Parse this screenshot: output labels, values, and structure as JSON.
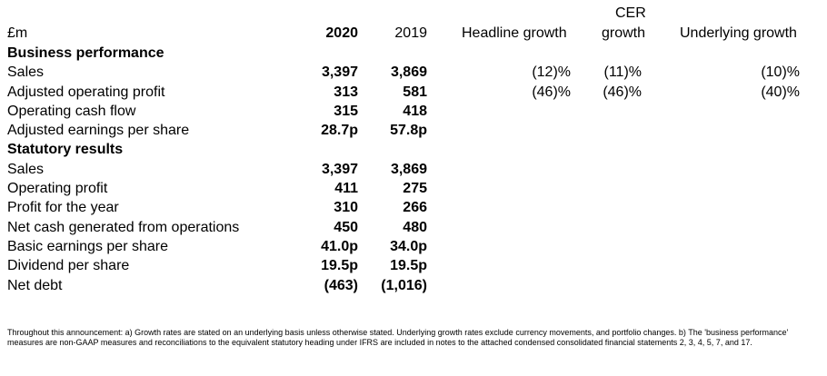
{
  "header": {
    "unit": "£m",
    "col_2020": "2020",
    "col_2019": "2019",
    "col_headline": "Headline growth",
    "col_cer_line1": "CER",
    "col_cer_line2": "growth",
    "col_underlying": "Underlying growth"
  },
  "rows": [
    {
      "label": "Business performance",
      "section": true
    },
    {
      "label": "Sales",
      "v2020": "3,397",
      "v2019": "3,869",
      "headline": "(12)%",
      "cer": "(11)%",
      "underlying": "(10)%"
    },
    {
      "label": "Adjusted operating profit",
      "v2020": "313",
      "v2019": "581",
      "headline": "(46)%",
      "cer": "(46)%",
      "underlying": "(40)%"
    },
    {
      "label": "Operating cash flow",
      "v2020": "315",
      "v2019": "418"
    },
    {
      "label": "Adjusted earnings per share",
      "v2020": "28.7p",
      "v2019": "57.8p"
    },
    {
      "label": "Statutory results",
      "section": true
    },
    {
      "label": "Sales",
      "v2020": "3,397",
      "v2019": "3,869"
    },
    {
      "label": "Operating profit",
      "v2020": "411",
      "v2019": "275"
    },
    {
      "label": "Profit for the year",
      "v2020": "310",
      "v2019": "266"
    },
    {
      "label": "Net cash generated from operations",
      "v2020": "450",
      "v2019": "480"
    },
    {
      "label": "Basic earnings per share",
      "v2020": "41.0p",
      "v2019": "34.0p"
    },
    {
      "label": "Dividend per share",
      "v2020": "19.5p",
      "v2019": "19.5p"
    },
    {
      "label": "Net debt",
      "v2020": "(463)",
      "v2019": "(1,016)"
    }
  ],
  "footnote": "Throughout this announcement: a) Growth rates are stated on an underlying basis unless otherwise stated. Underlying growth rates exclude currency movements, and portfolio changes. b) The 'business performance' measures are non-GAAP measures and reconciliations to the equivalent statutory heading under IFRS are included in notes to the attached condensed consolidated financial statements 2, 3, 4, 5, 7, and 17."
}
